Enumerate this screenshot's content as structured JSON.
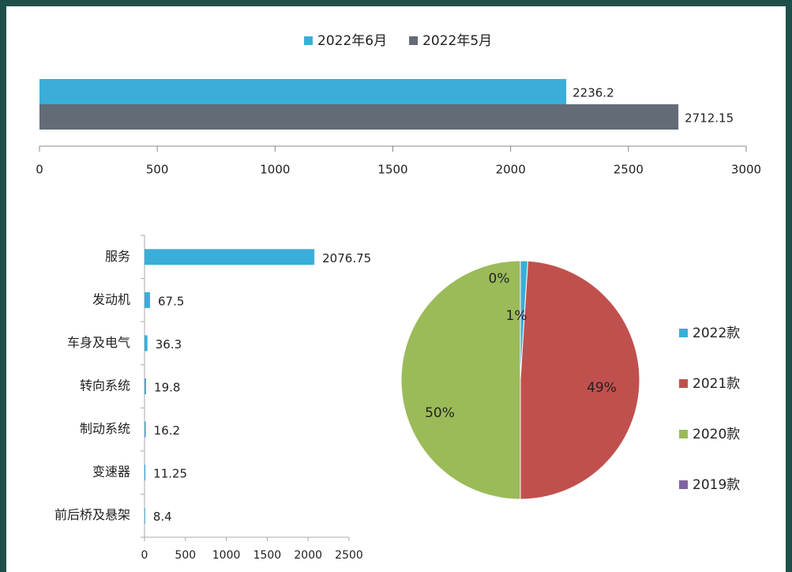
{
  "chart_data": [
    {
      "type": "hbar",
      "categories": [
        null
      ],
      "series": [
        {
          "name": "2022年6月",
          "color": "#3aaed8",
          "values": [
            2236.2
          ]
        },
        {
          "name": "2022年5月",
          "color": "#636b76",
          "values": [
            2712.15
          ]
        }
      ],
      "xlim": [
        0,
        3000
      ],
      "xticks": [
        0,
        500,
        1000,
        1500,
        2000,
        2500,
        3000
      ],
      "legend": "top"
    },
    {
      "type": "hbar",
      "categories": [
        "服务",
        "发动机",
        "车身及电气",
        "转向系统",
        "制动系统",
        "变速器",
        "前后桥及悬架"
      ],
      "values": [
        2076.75,
        67.5,
        36.3,
        19.8,
        16.2,
        11.25,
        8.4
      ],
      "color": "#3aaed8",
      "xlim": [
        0,
        2500
      ],
      "xticks": [
        0,
        500,
        1000,
        1500,
        2000,
        2500
      ]
    },
    {
      "type": "pie",
      "categories": [
        "2022款",
        "2021款",
        "2020款",
        "2019款"
      ],
      "values": [
        1,
        49,
        50,
        0
      ],
      "value_labels": [
        "1%",
        "49%",
        "50%",
        "0%"
      ],
      "colors": [
        "#3aaed8",
        "#c0504d",
        "#9bbb59",
        "#8064a2"
      ],
      "legend": "right"
    }
  ]
}
